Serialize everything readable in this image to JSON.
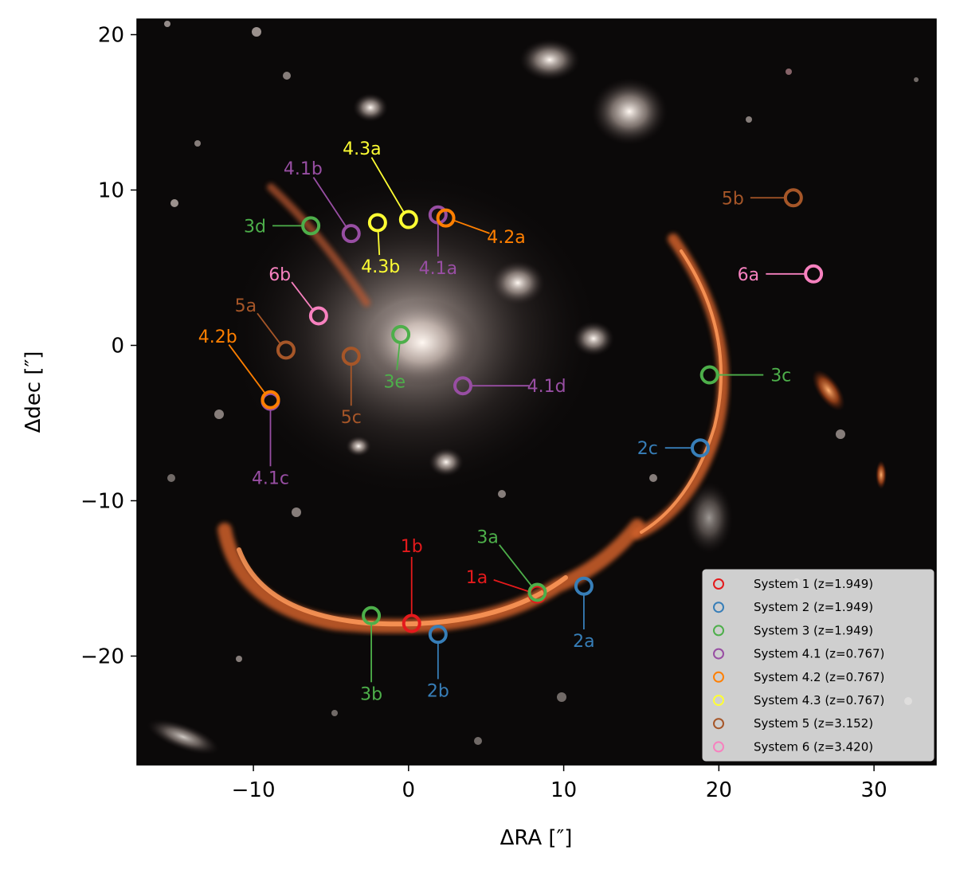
{
  "chart_data": {
    "type": "scatter",
    "title": "",
    "xlabel": "ΔRA [″]",
    "ylabel": "Δdec [″]",
    "xlim": [
      -17.5,
      34
    ],
    "ylim": [
      -27,
      21
    ],
    "x_ticks": [
      -10,
      0,
      10,
      20,
      30
    ],
    "x_tick_labels": [
      "−10",
      "0",
      "10",
      "20",
      "30"
    ],
    "y_ticks": [
      20,
      10,
      0,
      -10,
      -20
    ],
    "y_tick_labels": [
      "20",
      "10",
      "0",
      "−10",
      "−20"
    ],
    "grid": false,
    "background": "JWST color image of galaxy cluster with orange lensed arc",
    "legend_position": "lower-right",
    "series": [
      {
        "name": "System 1 (z=1.949)",
        "color": "#e41a1c",
        "points": [
          {
            "label": "1a",
            "x": 8.3,
            "y": -16.0,
            "lx": 4.4,
            "ly": -14.9
          },
          {
            "label": "1b",
            "x": 0.2,
            "y": -17.9,
            "lx": 0.2,
            "ly": -12.9
          }
        ]
      },
      {
        "name": "System 2 (z=1.949)",
        "color": "#377eb8",
        "points": [
          {
            "label": "2a",
            "x": 11.3,
            "y": -15.5,
            "lx": 11.3,
            "ly": -19.0
          },
          {
            "label": "2b",
            "x": 1.9,
            "y": -18.6,
            "lx": 1.9,
            "ly": -22.2
          },
          {
            "label": "2c",
            "x": 18.8,
            "y": -6.6,
            "lx": 15.4,
            "ly": -6.6
          }
        ]
      },
      {
        "name": "System 3 (z=1.949)",
        "color": "#4daf4a",
        "points": [
          {
            "label": "3a",
            "x": 8.3,
            "y": -15.9,
            "lx": 5.1,
            "ly": -12.3
          },
          {
            "label": "3b",
            "x": -2.4,
            "y": -17.4,
            "lx": -2.4,
            "ly": -22.4
          },
          {
            "label": "3c",
            "x": 19.4,
            "y": -1.9,
            "lx": 24.0,
            "ly": -1.9
          },
          {
            "label": "3d",
            "x": -6.3,
            "y": 7.7,
            "lx": -9.9,
            "ly": 7.7
          },
          {
            "label": "3e",
            "x": -0.5,
            "y": 0.7,
            "lx": -0.9,
            "ly": -2.3
          }
        ]
      },
      {
        "name": "System 4.1 (z=0.767)",
        "color": "#984ea3",
        "points": [
          {
            "label": "4.1a",
            "x": 1.9,
            "y": 8.4,
            "lx": 1.9,
            "ly": 5.0
          },
          {
            "label": "4.1b",
            "x": -3.7,
            "y": 7.2,
            "lx": -6.8,
            "ly": 11.4
          },
          {
            "label": "4.1c",
            "x": -8.9,
            "y": -3.6,
            "lx": -8.9,
            "ly": -8.5
          },
          {
            "label": "4.1d",
            "x": 3.5,
            "y": -2.6,
            "lx": 8.9,
            "ly": -2.6
          }
        ]
      },
      {
        "name": "System 4.2 (z=0.767)",
        "color": "#ff7f00",
        "points": [
          {
            "label": "4.2a",
            "x": 2.4,
            "y": 8.2,
            "lx": 6.3,
            "ly": 7.0
          },
          {
            "label": "4.2b",
            "x": -8.9,
            "y": -3.5,
            "lx": -12.3,
            "ly": 0.6
          }
        ]
      },
      {
        "name": "System 4.3 (z=0.767)",
        "color": "#ffff33",
        "points": [
          {
            "label": "4.3a",
            "x": 0.0,
            "y": 8.1,
            "lx": -3.0,
            "ly": 12.7
          },
          {
            "label": "4.3b",
            "x": -2.0,
            "y": 7.9,
            "lx": -1.8,
            "ly": 5.1
          }
        ]
      },
      {
        "name": "System 5 (z=3.152)",
        "color": "#a65628",
        "points": [
          {
            "label": "5a",
            "x": -7.9,
            "y": -0.3,
            "lx": -10.5,
            "ly": 2.6
          },
          {
            "label": "5b",
            "x": 24.8,
            "y": 9.5,
            "lx": 20.9,
            "ly": 9.5
          },
          {
            "label": "5c",
            "x": -3.7,
            "y": -0.7,
            "lx": -3.7,
            "ly": -4.6
          }
        ]
      },
      {
        "name": "System 6 (z=3.420)",
        "color": "#f781bf",
        "points": [
          {
            "label": "6a",
            "x": 26.1,
            "y": 4.6,
            "lx": 21.9,
            "ly": 4.6
          },
          {
            "label": "6b",
            "x": -5.8,
            "y": 1.9,
            "lx": -8.3,
            "ly": 4.6
          }
        ]
      }
    ]
  }
}
